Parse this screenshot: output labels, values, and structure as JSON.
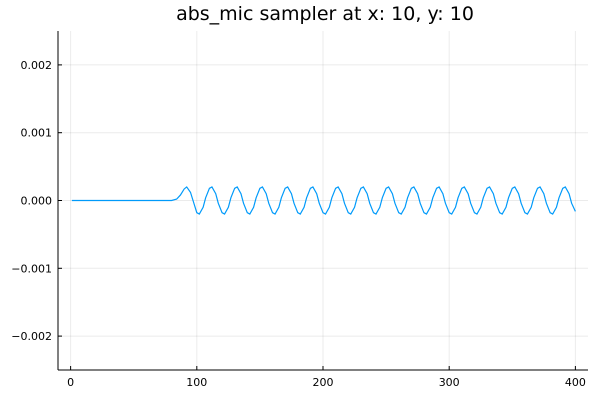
{
  "chart_data": {
    "type": "line",
    "title": "abs_mic sampler at x: 10, y: 10",
    "xlabel": "",
    "ylabel": "",
    "xlim": [
      -10,
      410
    ],
    "ylim": [
      -0.0025,
      0.0025
    ],
    "x_ticks": [
      0,
      100,
      200,
      300,
      400
    ],
    "x_tick_labels": [
      "0",
      "100",
      "200",
      "300",
      "400"
    ],
    "y_ticks": [
      0.002,
      0.001,
      0.0,
      -0.001,
      -0.002
    ],
    "y_tick_labels": [
      "0.002",
      "0.001",
      "0.000",
      "−0.001",
      "−0.002"
    ],
    "grid": true,
    "legend": "none",
    "series": [
      {
        "color": "#009AFA",
        "x": [
          1,
          5,
          10,
          15,
          20,
          25,
          30,
          35,
          40,
          45,
          50,
          55,
          60,
          65,
          70,
          75,
          80,
          84,
          87,
          90,
          92,
          95,
          97,
          100,
          102,
          105,
          107,
          110,
          112,
          115,
          117,
          120,
          122,
          125,
          127,
          130,
          132,
          135,
          137,
          140,
          142,
          145,
          147,
          150,
          152,
          155,
          157,
          160,
          162,
          165,
          167,
          170,
          172,
          175,
          177,
          180,
          182,
          185,
          187,
          190,
          192,
          195,
          197,
          200,
          202,
          205,
          207,
          210,
          212,
          215,
          217,
          220,
          222,
          225,
          227,
          230,
          232,
          235,
          237,
          240,
          242,
          245,
          247,
          250,
          252,
          255,
          257,
          260,
          262,
          265,
          267,
          270,
          272,
          275,
          277,
          280,
          282,
          285,
          287,
          290,
          292,
          295,
          297,
          300,
          302,
          305,
          307,
          310,
          312,
          315,
          317,
          320,
          322,
          325,
          327,
          330,
          332,
          335,
          337,
          340,
          342,
          345,
          347,
          350,
          352,
          355,
          357,
          360,
          362,
          365,
          367,
          370,
          372,
          375,
          377,
          380,
          382,
          385,
          387,
          390,
          392,
          395,
          397,
          400
        ],
        "y": [
          0,
          0,
          0,
          0,
          0,
          0,
          0,
          0,
          0,
          0,
          0,
          0,
          0,
          0,
          0,
          0,
          0,
          2e-05,
          8e-05,
          0.00017,
          0.0002,
          0.00012,
          0.0,
          -0.00018,
          -0.0002,
          -0.0001,
          4e-05,
          0.00018,
          0.0002,
          0.0001,
          -4e-05,
          -0.00018,
          -0.0002,
          -0.0001,
          4e-05,
          0.00018,
          0.0002,
          0.0001,
          -4e-05,
          -0.00018,
          -0.0002,
          -0.0001,
          4e-05,
          0.00018,
          0.0002,
          0.0001,
          -4e-05,
          -0.00018,
          -0.0002,
          -0.0001,
          4e-05,
          0.00018,
          0.0002,
          0.0001,
          -4e-05,
          -0.00018,
          -0.0002,
          -0.0001,
          4e-05,
          0.00018,
          0.0002,
          0.0001,
          -4e-05,
          -0.00018,
          -0.0002,
          -0.0001,
          4e-05,
          0.00018,
          0.0002,
          0.0001,
          -4e-05,
          -0.00018,
          -0.0002,
          -0.0001,
          4e-05,
          0.00018,
          0.0002,
          0.0001,
          -4e-05,
          -0.00018,
          -0.0002,
          -0.0001,
          4e-05,
          0.00018,
          0.0002,
          0.0001,
          -4e-05,
          -0.00018,
          -0.0002,
          -0.0001,
          4e-05,
          0.00018,
          0.0002,
          0.0001,
          -4e-05,
          -0.00018,
          -0.0002,
          -0.0001,
          4e-05,
          0.00018,
          0.0002,
          0.0001,
          -4e-05,
          -0.00018,
          -0.0002,
          -0.0001,
          4e-05,
          0.00018,
          0.0002,
          0.0001,
          -4e-05,
          -0.00018,
          -0.0002,
          -0.0001,
          4e-05,
          0.00018,
          0.0002,
          0.0001,
          -4e-05,
          -0.00018,
          -0.0002,
          -0.0001,
          4e-05,
          0.00018,
          0.0002,
          0.0001,
          -4e-05,
          -0.00018,
          -0.0002,
          -0.0001,
          4e-05,
          0.00018,
          0.0002,
          0.0001,
          -4e-05,
          -0.00018,
          -0.0002,
          -0.0001,
          4e-05,
          0.00018,
          0.0002,
          0.0001,
          -4e-05,
          -0.00016
        ]
      }
    ]
  }
}
